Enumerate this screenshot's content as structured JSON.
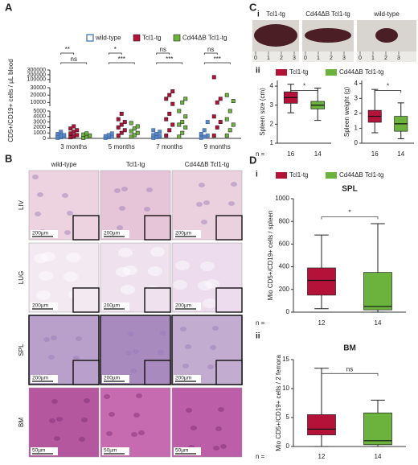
{
  "panel_labels": [
    "A",
    "B",
    "C",
    "D"
  ],
  "chart_data": [
    {
      "type": "scatter",
      "y_label": "CD5+/CD19+ cells / µL blood",
      "categories": [
        "3 months",
        "5 months",
        "7 months",
        "9 months"
      ],
      "ylim": [
        0,
        300000
      ],
      "y_segments": [
        [
          0,
          5000
        ],
        [
          5000,
          30000
        ],
        [
          30000,
          300000
        ]
      ],
      "yticks": [
        0,
        1000,
        2000,
        3000,
        4000,
        5000,
        10000,
        20000,
        30000,
        100000,
        200000,
        300000
      ],
      "series": [
        {
          "name": "wild-type",
          "color": "#5b86c4",
          "values": [
            [
              100,
              200,
              300,
              400,
              500,
              600,
              800,
              1200
            ],
            [
              100,
              200,
              300,
              400,
              600,
              900
            ],
            [
              100,
              200,
              400,
              600,
              800,
              1200,
              1500
            ],
            [
              100,
              300,
              500,
              800,
              1500,
              3000
            ]
          ]
        },
        {
          "name": "Tcl1-tg",
          "color": "#b5123a",
          "values": [
            [
              200,
              400,
              600,
              900,
              1200,
              1500,
              1800,
              2200
            ],
            [
              500,
              1000,
              1500,
              2000,
              2500,
              3000,
              3500,
              4500
            ],
            [
              500,
              1500,
              2500,
              3500,
              4500,
              8000,
              15000,
              20000,
              25000
            ],
            [
              500,
              2000,
              3000,
              4000,
              10000,
              15000,
              150000
            ]
          ]
        },
        {
          "name": "Cd44ΔB Tcl1-tg",
          "color": "#6cb33e",
          "values": [
            [
              100,
              300,
              500,
              700,
              900
            ],
            [
              300,
              600,
              1000,
              1300,
              1800,
              2200,
              2800
            ],
            [
              300,
              1000,
              2000,
              2500,
              3000,
              4000,
              5000,
              10000,
              15000
            ],
            [
              500,
              1500,
              2500,
              3500,
              5000,
              12000,
              20000
            ]
          ]
        }
      ],
      "significance": [
        [
          "**",
          "ns"
        ],
        [
          "*",
          "***"
        ],
        [
          "ns",
          "***"
        ],
        [
          "ns",
          "***"
        ]
      ]
    },
    {
      "type": "box",
      "subpanel": "ii",
      "legend": true,
      "y_label": "Spleen size (cm)",
      "ylim": [
        1,
        4.3
      ],
      "yticks": [
        1,
        2,
        3,
        4
      ],
      "n_label": "n =",
      "categories": [
        16,
        14
      ],
      "series": [
        {
          "name": "Tcl1-tg",
          "color": "#b5123a",
          "values": [
            2.6,
            3.1,
            3.4,
            3.7,
            4.1
          ]
        },
        {
          "name": "Cd44ΔB Tcl1-tg",
          "color": "#6cb33e",
          "values": [
            2.2,
            2.8,
            3.0,
            3.2,
            3.9
          ]
        }
      ],
      "significance": "*"
    },
    {
      "type": "box",
      "legend": false,
      "y_label": "Spleen weight (g)",
      "ylim": [
        0,
        4.2
      ],
      "yticks": [
        0,
        1,
        2,
        3,
        4
      ],
      "categories": [
        16,
        14
      ],
      "series": [
        {
          "name": "Tcl1-tg",
          "color": "#b5123a",
          "values": [
            0.7,
            1.4,
            1.8,
            2.2,
            3.6
          ]
        },
        {
          "name": "Cd44ΔB Tcl1-tg",
          "color": "#6cb33e",
          "values": [
            0.3,
            0.8,
            1.3,
            1.8,
            2.7
          ]
        }
      ],
      "significance": "*"
    },
    {
      "type": "box",
      "subpanel": "i",
      "legend": true,
      "title": "SPL",
      "y_label": "Mio CD5+/CD19+ cells / spleen",
      "ylim": [
        0,
        1000
      ],
      "yticks": [
        0,
        200,
        400,
        600,
        800,
        1000
      ],
      "n_label": "n =",
      "categories": [
        12,
        14
      ],
      "series": [
        {
          "name": "Tcl1-tg",
          "color": "#b5123a",
          "values": [
            30,
            150,
            280,
            390,
            680
          ]
        },
        {
          "name": "Cd44ΔB Tcl1-tg",
          "color": "#6cb33e",
          "values": [
            0,
            20,
            50,
            350,
            780
          ]
        }
      ],
      "significance": "*"
    },
    {
      "type": "box",
      "subpanel": "ii",
      "legend": false,
      "title": "BM",
      "y_label": "Mio CD5+/CD19+ cells / 2 femora",
      "ylim": [
        0,
        15
      ],
      "yticks": [
        0,
        5,
        10,
        15
      ],
      "n_label": "n =",
      "categories": [
        12,
        14
      ],
      "series": [
        {
          "name": "Tcl1-tg",
          "color": "#b5123a",
          "values": [
            0,
            2,
            3,
            5.5,
            13.5
          ]
        },
        {
          "name": "Cd44ΔB Tcl1-tg",
          "color": "#6cb33e",
          "values": [
            0,
            0.3,
            1,
            5.8,
            8
          ]
        }
      ],
      "significance": "ns"
    }
  ],
  "histology": {
    "columns": [
      "wild-type",
      "Tcl1-tg",
      "Cd44ΔB Tcl1-tg"
    ],
    "rows": [
      {
        "label": "LIV",
        "scale_bar": "200µm"
      },
      {
        "label": "LUG",
        "scale_bar": "200µm"
      },
      {
        "label": "SPL",
        "scale_bar": "200µm"
      },
      {
        "label": "BM",
        "scale_bar": "50µm"
      }
    ]
  },
  "photos": {
    "subpanel": "i",
    "labels": [
      "Tcl1-tg",
      "Cd44ΔB Tcl1-tg",
      "wild-type"
    ],
    "ruler_labels": [
      0,
      1,
      2,
      3
    ]
  }
}
